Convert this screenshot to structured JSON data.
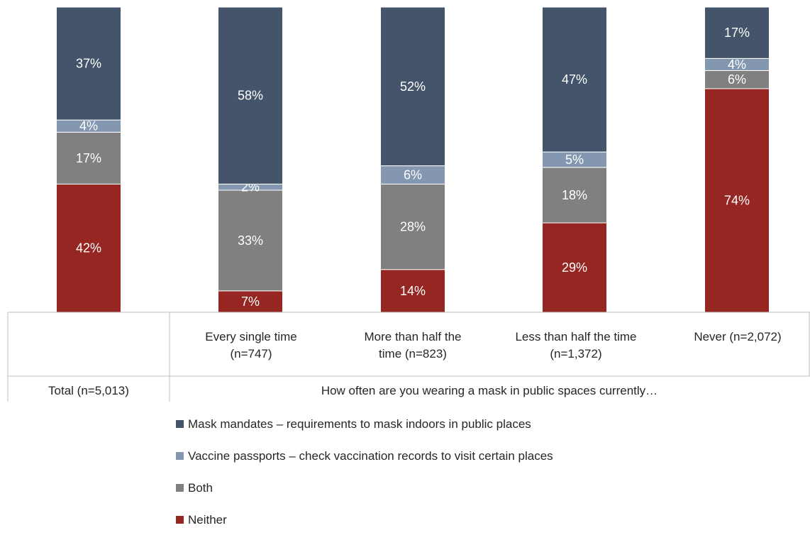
{
  "chart_data": {
    "type": "bar",
    "stacked": true,
    "categories": [
      "Total (n=5,013)",
      "Every single time (n=747)",
      "More than half the time (n=823)",
      "Less than half the time (n=1,372)",
      "Never (n=2,072)"
    ],
    "group_label": "How often are you wearing a mask in public spaces currently…",
    "series": [
      {
        "name": "Neither",
        "color": "#962621",
        "values": [
          42,
          7,
          14,
          29,
          74
        ]
      },
      {
        "name": "Both",
        "color": "#808080",
        "values": [
          17,
          33,
          28,
          18,
          6
        ]
      },
      {
        "name": "Vaccine passports – check vaccination records to visit certain places",
        "color": "#8497b0",
        "values": [
          4,
          2,
          6,
          5,
          4
        ]
      },
      {
        "name": "Mask mandates – requirements to mask indoors in public places",
        "color": "#44546a",
        "values": [
          37,
          58,
          52,
          47,
          17
        ]
      }
    ],
    "ylim": [
      0,
      100
    ],
    "grid": false,
    "legend_position": "bottom"
  },
  "labels": {
    "cat0": "Total (n=5,013)",
    "cat1_line1": "Every single time",
    "cat1_line2": "(n=747)",
    "cat2_line1": "More than half the",
    "cat2_line2": "time (n=823)",
    "cat3_line1": "Less than half the time",
    "cat3_line2": "(n=1,372)",
    "cat4": "Never (n=2,072)",
    "group": "How often are you wearing a mask in public spaces currently…"
  },
  "legend": [
    {
      "label": "Mask mandates – requirements to mask indoors in public places",
      "color": "#44546a"
    },
    {
      "label": "Vaccine passports – check vaccination records to visit certain places",
      "color": "#8497b0"
    },
    {
      "label": "Both",
      "color": "#808080"
    },
    {
      "label": "Neither",
      "color": "#962621"
    }
  ]
}
